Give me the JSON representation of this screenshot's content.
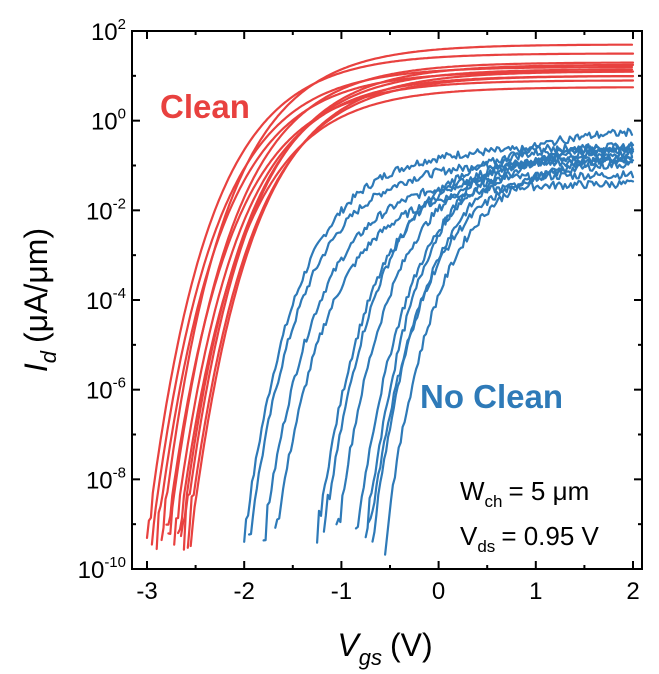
{
  "chart_data": {
    "type": "line",
    "xlabel": "V",
    "xlabel_sub": "gs",
    "xlabel_unit": "(V)",
    "ylabel": "I",
    "ylabel_sub": "d",
    "ylabel_unit": "(μA/μm)",
    "xlim": [
      -3.1,
      2.05
    ],
    "ylim_log10": [
      -10,
      2
    ],
    "y_scale": "log",
    "x_ticks": [
      -3,
      -2,
      -1,
      0,
      1,
      2
    ],
    "x_tick_labels": [
      "-3",
      "-2",
      "-1",
      "0",
      "1",
      "2"
    ],
    "y_ticks_exp": [
      -10,
      -8,
      -6,
      -4,
      -2,
      0,
      2
    ],
    "y_tick_base": "10",
    "y_tick_exponents": [
      "-10",
      "-8",
      "-6",
      "-4",
      "-2",
      "0",
      "2"
    ],
    "grid": false,
    "groups": [
      {
        "name": "Clean",
        "color": "#e8413f",
        "curve_params": [
          [
            -3.0,
            1.5
          ],
          [
            -2.95,
            1.2
          ],
          [
            -2.9,
            1.1
          ],
          [
            -2.85,
            1.7
          ],
          [
            -2.78,
            1.3
          ],
          [
            -2.72,
            1.0
          ],
          [
            -2.65,
            1.15
          ],
          [
            -2.62,
            1.25
          ],
          [
            -2.58,
            1.0
          ],
          [
            -2.55,
            1.1
          ],
          [
            -2.68,
            0.75
          ],
          [
            -2.8,
            0.9
          ]
        ]
      },
      {
        "name": "No Clean",
        "color": "#2e7ab8",
        "curve_params": [
          [
            -2.0,
            -0.6
          ],
          [
            -1.95,
            -0.9
          ],
          [
            -1.8,
            -1.2
          ],
          [
            -1.68,
            -1.4
          ],
          [
            -1.25,
            -0.8
          ],
          [
            -1.18,
            -0.55
          ],
          [
            -1.05,
            -0.7
          ],
          [
            -0.85,
            -0.6
          ],
          [
            -0.72,
            -0.9
          ],
          [
            -0.68,
            -0.5
          ],
          [
            -0.55,
            -0.75
          ],
          [
            -0.75,
            -0.2
          ]
        ]
      }
    ],
    "annotations": {
      "line1_main": "W",
      "line1_sub": "ch",
      "line1_value": "= 5 μm",
      "line2_main": "V",
      "line2_sub": "ds",
      "line2_value": "= 0.95 V"
    }
  }
}
